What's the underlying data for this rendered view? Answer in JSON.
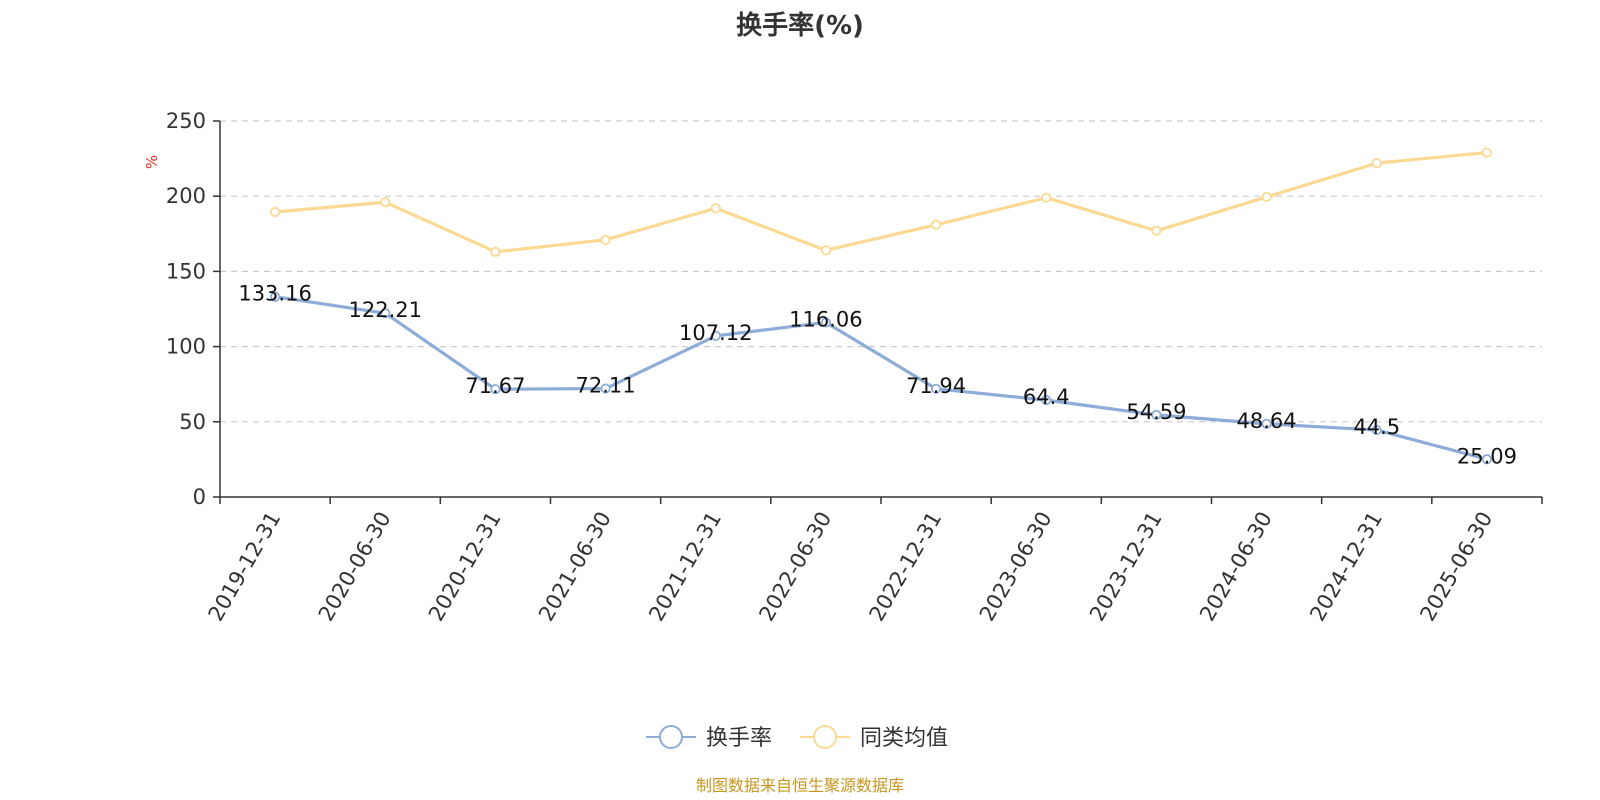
{
  "chart_data": {
    "type": "line",
    "title": "换手率(%)",
    "ylabel": "%",
    "xlabel": "",
    "ylim": [
      0,
      250
    ],
    "yticks": [
      0,
      50,
      100,
      150,
      200,
      250
    ],
    "grid": true,
    "legend_position": "bottom",
    "categories": [
      "2019-12-31",
      "2020-06-30",
      "2020-12-31",
      "2021-06-30",
      "2021-12-31",
      "2022-06-30",
      "2022-12-31",
      "2023-06-30",
      "2023-12-31",
      "2024-06-30",
      "2024-12-31",
      "2025-06-30"
    ],
    "series": [
      {
        "name": "换手率",
        "color": "#8eacd8",
        "values": [
          133.16,
          122.21,
          71.67,
          72.11,
          107.12,
          116.06,
          71.94,
          64.4,
          54.59,
          48.64,
          44.5,
          25.09
        ],
        "labels": [
          "133.16",
          "122.21",
          "71.67",
          "72.11",
          "107.12",
          "116.06",
          "71.94",
          "64.4",
          "54.59",
          "48.64",
          "44.5",
          "25.09"
        ],
        "show_labels": true
      },
      {
        "name": "同类均值",
        "color": "#fcd993",
        "values": [
          189.5,
          196,
          163,
          171,
          192,
          164,
          181,
          199,
          177,
          199.5,
          222,
          229
        ],
        "show_labels": false
      }
    ],
    "source": "制图数据来自恒生聚源数据库"
  }
}
